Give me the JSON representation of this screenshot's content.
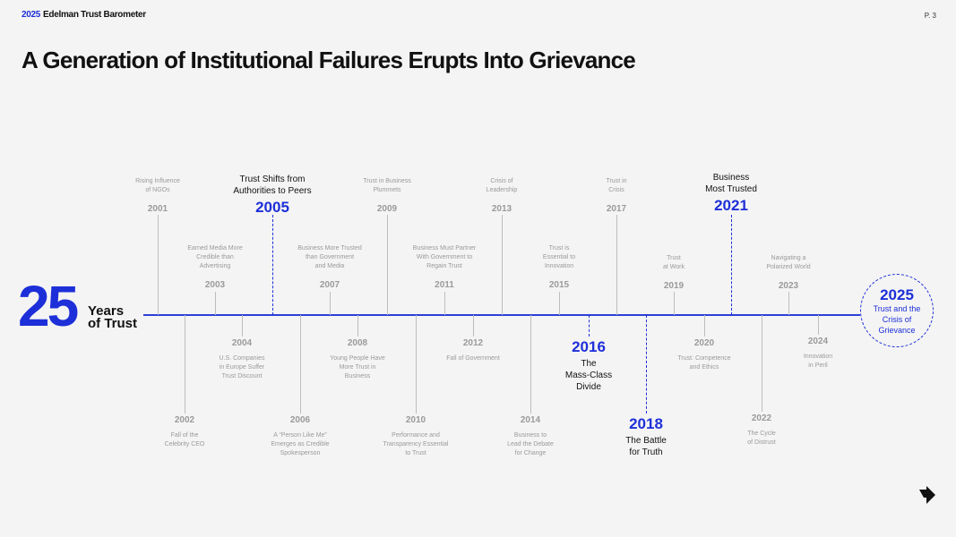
{
  "header": {
    "year": "2025",
    "brand": "Edelman Trust Barometer",
    "page": "P. 3"
  },
  "title": "A Generation of Institutional Failures Erupts Into Grievance",
  "hero": {
    "number": "25",
    "line1": "Years",
    "line2": "of Trust"
  },
  "events": [
    {
      "year": "2001",
      "label": [
        "Rising Influence",
        "of NGOs"
      ],
      "highlight": false
    },
    {
      "year": "2002",
      "label": [
        "Fall of the",
        "Celebrity CEO"
      ],
      "highlight": false
    },
    {
      "year": "2003",
      "label": [
        "Earned Media More",
        "Credible than",
        "Advertising"
      ],
      "highlight": false
    },
    {
      "year": "2004",
      "label": [
        "U.S. Companies",
        "in Europe Suffer",
        "Trust Discount"
      ],
      "highlight": false
    },
    {
      "year": "2005",
      "label": [
        "Trust Shifts from",
        "Authorities to Peers"
      ],
      "highlight": true
    },
    {
      "year": "2006",
      "label": [
        "A “Person Like Me”",
        "Emerges as Credible",
        "Spokesperson"
      ],
      "highlight": false
    },
    {
      "year": "2007",
      "label": [
        "Business More Trusted",
        "than Government",
        "and Media"
      ],
      "highlight": false
    },
    {
      "year": "2008",
      "label": [
        "Young People Have",
        "More Trust in",
        "Business"
      ],
      "highlight": false
    },
    {
      "year": "2009",
      "label": [
        "Trust in Business",
        "Plummets"
      ],
      "highlight": false
    },
    {
      "year": "2010",
      "label": [
        "Performance and",
        "Transparency Essential",
        "to Trust"
      ],
      "highlight": false
    },
    {
      "year": "2011",
      "label": [
        "Business Must Partner",
        "With Government to",
        "Regain Trust"
      ],
      "highlight": false
    },
    {
      "year": "2012",
      "label": [
        "Fall of Government"
      ],
      "highlight": false
    },
    {
      "year": "2013",
      "label": [
        "Crisis of",
        "Leadership"
      ],
      "highlight": false
    },
    {
      "year": "2014",
      "label": [
        "Business to",
        "Lead the Debate",
        "for Change"
      ],
      "highlight": false
    },
    {
      "year": "2015",
      "label": [
        "Trust is",
        "Essential to",
        "Innovation"
      ],
      "highlight": false
    },
    {
      "year": "2016",
      "label": [
        "The",
        "Mass-Class",
        "Divide"
      ],
      "highlight": true
    },
    {
      "year": "2017",
      "label": [
        "Trust in",
        "Crisis"
      ],
      "highlight": false
    },
    {
      "year": "2018",
      "label": [
        "The Battle",
        "for Truth"
      ],
      "highlight": true
    },
    {
      "year": "2019",
      "label": [
        "Trust",
        "at Work"
      ],
      "highlight": false
    },
    {
      "year": "2020",
      "label": [
        "Trust: Competence",
        "and Ethics"
      ],
      "highlight": false
    },
    {
      "year": "2021",
      "label": [
        "Business",
        "Most Trusted"
      ],
      "highlight": true
    },
    {
      "year": "2022",
      "label": [
        "The Cycle",
        "of Distrust"
      ],
      "highlight": false
    },
    {
      "year": "2023",
      "label": [
        "Navigating a",
        "Polarized World"
      ],
      "highlight": false
    },
    {
      "year": "2024",
      "label": [
        "Innovation",
        "in Peril"
      ],
      "highlight": false
    }
  ],
  "final": {
    "year": "2025",
    "label": [
      "Trust and the",
      "Crisis of",
      "Grievance"
    ]
  },
  "colors": {
    "accent": "#1d2fd8",
    "muted": "#9a9a9a",
    "background": "#f4f4f4"
  },
  "icons": {
    "next": "arrow-right-icon"
  }
}
